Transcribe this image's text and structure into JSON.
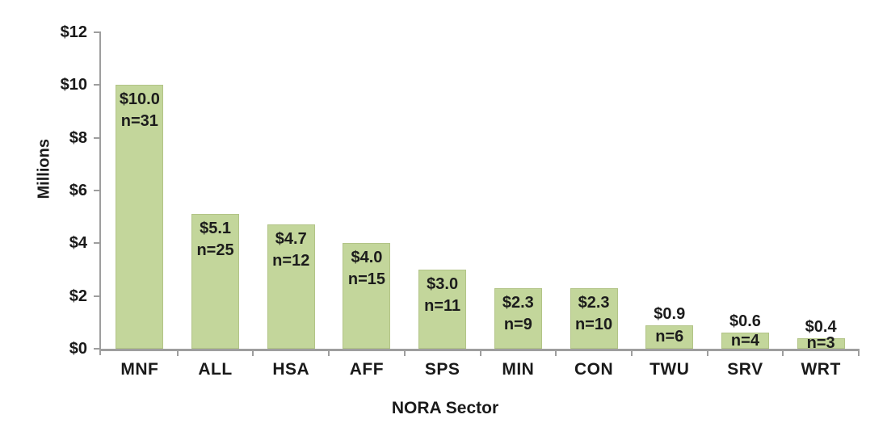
{
  "chart_data": {
    "type": "bar",
    "title": "",
    "xlabel": "NORA Sector",
    "ylabel": "Millions",
    "categories": [
      "MNF",
      "ALL",
      "HSA",
      "AFF",
      "SPS",
      "MIN",
      "CON",
      "TWU",
      "SRV",
      "WRT"
    ],
    "values": [
      10.0,
      5.1,
      4.7,
      4.0,
      3.0,
      2.3,
      2.3,
      0.9,
      0.6,
      0.4
    ],
    "value_labels": [
      "$10.0",
      "$5.1",
      "$4.7",
      "$4.0",
      "$3.0",
      "$2.3",
      "$2.3",
      "$0.9",
      "$0.6",
      "$0.4"
    ],
    "counts": [
      31,
      25,
      12,
      15,
      11,
      9,
      10,
      6,
      4,
      3
    ],
    "n_labels": [
      "n=31",
      "n=25",
      "n=12",
      "n=15",
      "n=11",
      "n=9",
      "n=10",
      "n=6",
      "n=4",
      "n=3"
    ],
    "ylim": [
      0,
      12
    ],
    "ytick_step": 2,
    "ytick_labels": [
      "$0",
      "$2",
      "$4",
      "$6",
      "$8",
      "$10",
      "$12"
    ],
    "grid": false,
    "legend": "none",
    "bar_color": "#c3d69b",
    "bar_border_color": "#b2c487",
    "axis_color": "#9e9e9e",
    "text_color": "#1a1a1a",
    "background_color": "#ffffff"
  }
}
